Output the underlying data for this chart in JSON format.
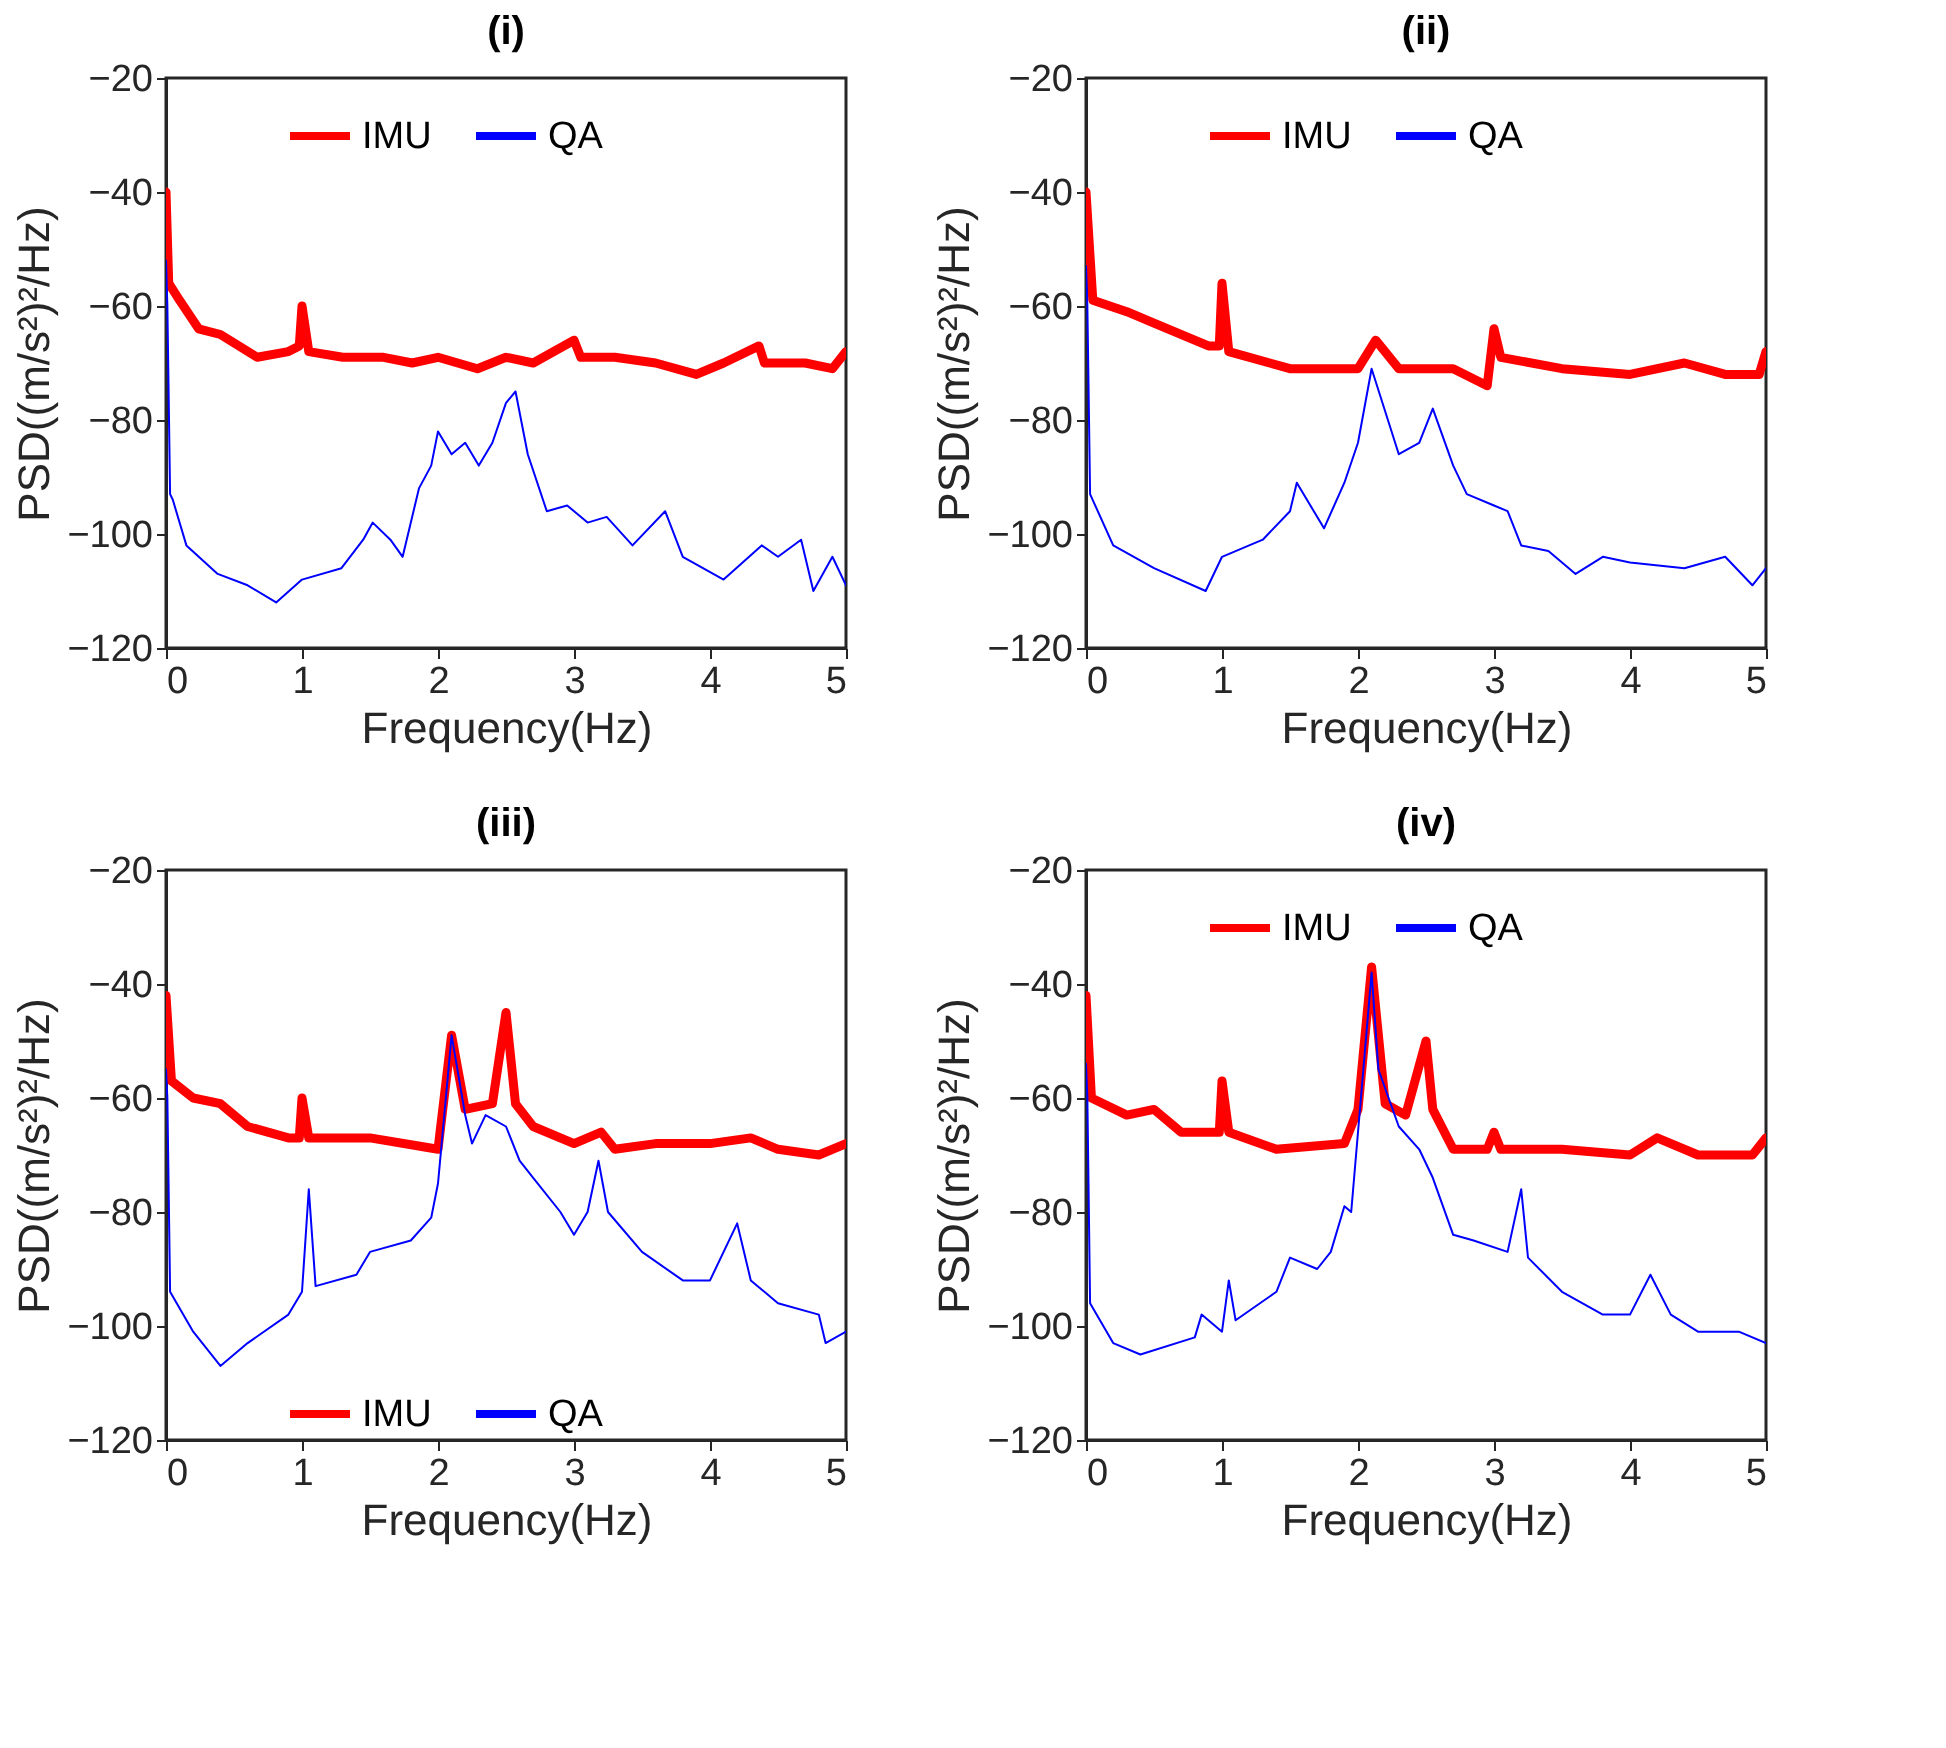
{
  "chart_data": [
    {
      "type": "line",
      "title": "(i)",
      "xlabel": "Frequency(Hz)",
      "ylabel": "PSD((m/s²)²/Hz)",
      "xlim": [
        0,
        5
      ],
      "ylim": [
        -120,
        -20
      ],
      "xticks": [
        0,
        1,
        2,
        3,
        4,
        5
      ],
      "yticks": [
        -120,
        -100,
        -80,
        -60,
        -40,
        -20
      ],
      "grid": false,
      "legend": "top",
      "series": [
        {
          "name": "IMU",
          "color": "#ff0000",
          "x": [
            0,
            0.02,
            0.1,
            0.24,
            0.4,
            0.67,
            0.9,
            0.98,
            1.0,
            1.05,
            1.3,
            1.6,
            1.81,
            2.0,
            2.29,
            2.5,
            2.7,
            3.0,
            3.05,
            3.3,
            3.6,
            3.9,
            4.1,
            4.36,
            4.4,
            4.7,
            4.9,
            5.0
          ],
          "values": [
            -40,
            -56,
            -59,
            -64,
            -65,
            -69,
            -68,
            -67,
            -60,
            -68,
            -69,
            -69,
            -70,
            -69,
            -71,
            -69,
            -70,
            -66,
            -69,
            -69,
            -70,
            -72,
            -70,
            -67,
            -70,
            -70,
            -71,
            -68
          ]
        },
        {
          "name": "QA",
          "color": "#0000ff",
          "x": [
            0,
            0.01,
            0.03,
            0.05,
            0.15,
            0.38,
            0.6,
            0.81,
            1.0,
            1.29,
            1.45,
            1.52,
            1.65,
            1.74,
            1.86,
            1.95,
            2.0,
            2.1,
            2.2,
            2.3,
            2.4,
            2.5,
            2.57,
            2.66,
            2.8,
            2.95,
            3.1,
            3.24,
            3.43,
            3.67,
            3.8,
            4.1,
            4.38,
            4.5,
            4.67,
            4.76,
            4.9,
            5.0
          ],
          "values": [
            -52,
            -60,
            -93,
            -94,
            -102,
            -107,
            -109,
            -112,
            -108,
            -106,
            -101,
            -98,
            -101,
            -104,
            -92,
            -88,
            -82,
            -86,
            -84,
            -88,
            -84,
            -77,
            -75,
            -86,
            -96,
            -95,
            -98,
            -97,
            -102,
            -96,
            -104,
            -108,
            -102,
            -104,
            -101,
            -110,
            -104,
            -109
          ]
        }
      ]
    },
    {
      "type": "line",
      "title": "(ii)",
      "xlabel": "Frequency(Hz)",
      "ylabel": "PSD((m/s²)²/Hz)",
      "xlim": [
        0,
        5
      ],
      "ylim": [
        -120,
        -20
      ],
      "xticks": [
        0,
        1,
        2,
        3,
        4,
        5
      ],
      "yticks": [
        -120,
        -100,
        -80,
        -60,
        -40,
        -20
      ],
      "grid": false,
      "legend": "top",
      "series": [
        {
          "name": "IMU",
          "color": "#ff0000",
          "x": [
            0,
            0.05,
            0.3,
            0.5,
            0.9,
            0.98,
            1.0,
            1.05,
            1.5,
            2.0,
            2.13,
            2.3,
            2.7,
            2.95,
            3.0,
            3.05,
            3.5,
            4.0,
            4.4,
            4.7,
            4.95,
            5.0
          ],
          "values": [
            -40,
            -59,
            -61,
            -63,
            -67,
            -67,
            -56,
            -68,
            -71,
            -71,
            -66,
            -71,
            -71,
            -74,
            -64,
            -69,
            -71,
            -72,
            -70,
            -72,
            -72,
            -68
          ]
        },
        {
          "name": "QA",
          "color": "#0000ff",
          "x": [
            0,
            0.01,
            0.03,
            0.2,
            0.5,
            0.88,
            1.0,
            1.3,
            1.5,
            1.55,
            1.75,
            1.9,
            2.0,
            2.1,
            2.22,
            2.3,
            2.45,
            2.55,
            2.7,
            2.8,
            3.0,
            3.1,
            3.2,
            3.4,
            3.6,
            3.8,
            4.0,
            4.4,
            4.7,
            4.9,
            5.0
          ],
          "values": [
            -53,
            -60,
            -93,
            -102,
            -106,
            -110,
            -104,
            -101,
            -96,
            -91,
            -99,
            -91,
            -84,
            -71,
            -80,
            -86,
            -84,
            -78,
            -88,
            -93,
            -95,
            -96,
            -102,
            -103,
            -107,
            -104,
            -105,
            -106,
            -104,
            -109,
            -106
          ]
        }
      ]
    },
    {
      "type": "line",
      "title": "(iii)",
      "xlabel": "Frequency(Hz)",
      "ylabel": "PSD((m/s²)²/Hz)",
      "xlim": [
        0,
        5
      ],
      "ylim": [
        -120,
        -20
      ],
      "xticks": [
        0,
        1,
        2,
        3,
        4,
        5
      ],
      "yticks": [
        -120,
        -100,
        -80,
        -60,
        -40,
        -20
      ],
      "grid": false,
      "legend": "bottom",
      "series": [
        {
          "name": "IMU",
          "color": "#ff0000",
          "x": [
            0,
            0.04,
            0.2,
            0.4,
            0.6,
            0.9,
            0.98,
            1.0,
            1.05,
            1.5,
            2.0,
            2.1,
            2.2,
            2.4,
            2.5,
            2.57,
            2.7,
            3.0,
            3.2,
            3.3,
            3.6,
            4.0,
            4.3,
            4.5,
            4.8,
            5.0
          ],
          "values": [
            -42,
            -57,
            -60,
            -61,
            -65,
            -67,
            -67,
            -60,
            -67,
            -67,
            -69,
            -49,
            -62,
            -61,
            -45,
            -61,
            -65,
            -68,
            -66,
            -69,
            -68,
            -68,
            -67,
            -69,
            -70,
            -68
          ]
        },
        {
          "name": "QA",
          "color": "#0000ff",
          "x": [
            0,
            0.01,
            0.03,
            0.2,
            0.4,
            0.6,
            0.9,
            1.0,
            1.05,
            1.1,
            1.4,
            1.5,
            1.8,
            1.95,
            2.0,
            2.1,
            2.2,
            2.25,
            2.35,
            2.5,
            2.6,
            2.7,
            2.9,
            3.0,
            3.1,
            3.18,
            3.25,
            3.5,
            3.8,
            4.0,
            4.2,
            4.3,
            4.5,
            4.8,
            4.85,
            5.0
          ],
          "values": [
            -55,
            -60,
            -94,
            -101,
            -107,
            -103,
            -98,
            -94,
            -76,
            -93,
            -91,
            -87,
            -85,
            -81,
            -75,
            -49,
            -63,
            -68,
            -63,
            -65,
            -71,
            -74,
            -80,
            -84,
            -80,
            -71,
            -80,
            -87,
            -92,
            -92,
            -82,
            -92,
            -96,
            -98,
            -103,
            -101
          ]
        }
      ]
    },
    {
      "type": "line",
      "title": "(iv)",
      "xlabel": "Frequency(Hz)",
      "ylabel": "PSD((m/s²)²/Hz)",
      "xlim": [
        0,
        5
      ],
      "ylim": [
        -120,
        -20
      ],
      "xticks": [
        0,
        1,
        2,
        3,
        4,
        5
      ],
      "yticks": [
        -120,
        -100,
        -80,
        -60,
        -40,
        -20
      ],
      "grid": false,
      "legend": "top",
      "series": [
        {
          "name": "IMU",
          "color": "#ff0000",
          "x": [
            0,
            0.04,
            0.3,
            0.5,
            0.7,
            0.98,
            1.0,
            1.05,
            1.4,
            1.9,
            2.0,
            2.1,
            2.2,
            2.35,
            2.5,
            2.55,
            2.7,
            2.95,
            3.0,
            3.05,
            3.5,
            4.0,
            4.2,
            4.5,
            4.9,
            5.0
          ],
          "values": [
            -42,
            -60,
            -63,
            -62,
            -66,
            -66,
            -57,
            -66,
            -69,
            -68,
            -62,
            -37,
            -61,
            -63,
            -50,
            -62,
            -69,
            -69,
            -66,
            -69,
            -69,
            -70,
            -67,
            -70,
            -70,
            -67
          ]
        },
        {
          "name": "QA",
          "color": "#0000ff",
          "x": [
            0,
            0.01,
            0.03,
            0.2,
            0.4,
            0.8,
            0.85,
            1.0,
            1.05,
            1.1,
            1.4,
            1.5,
            1.7,
            1.8,
            1.9,
            1.95,
            2.1,
            2.15,
            2.3,
            2.45,
            2.55,
            2.7,
            2.85,
            3.1,
            3.2,
            3.25,
            3.5,
            3.8,
            4.0,
            4.15,
            4.3,
            4.5,
            4.8,
            5.0
          ],
          "values": [
            -54,
            -60,
            -96,
            -103,
            -105,
            -102,
            -98,
            -101,
            -92,
            -99,
            -94,
            -88,
            -90,
            -87,
            -79,
            -80,
            -38,
            -55,
            -65,
            -69,
            -74,
            -84,
            -85,
            -87,
            -76,
            -88,
            -94,
            -98,
            -98,
            -91,
            -98,
            -101,
            -101,
            -103
          ]
        }
      ]
    }
  ]
}
